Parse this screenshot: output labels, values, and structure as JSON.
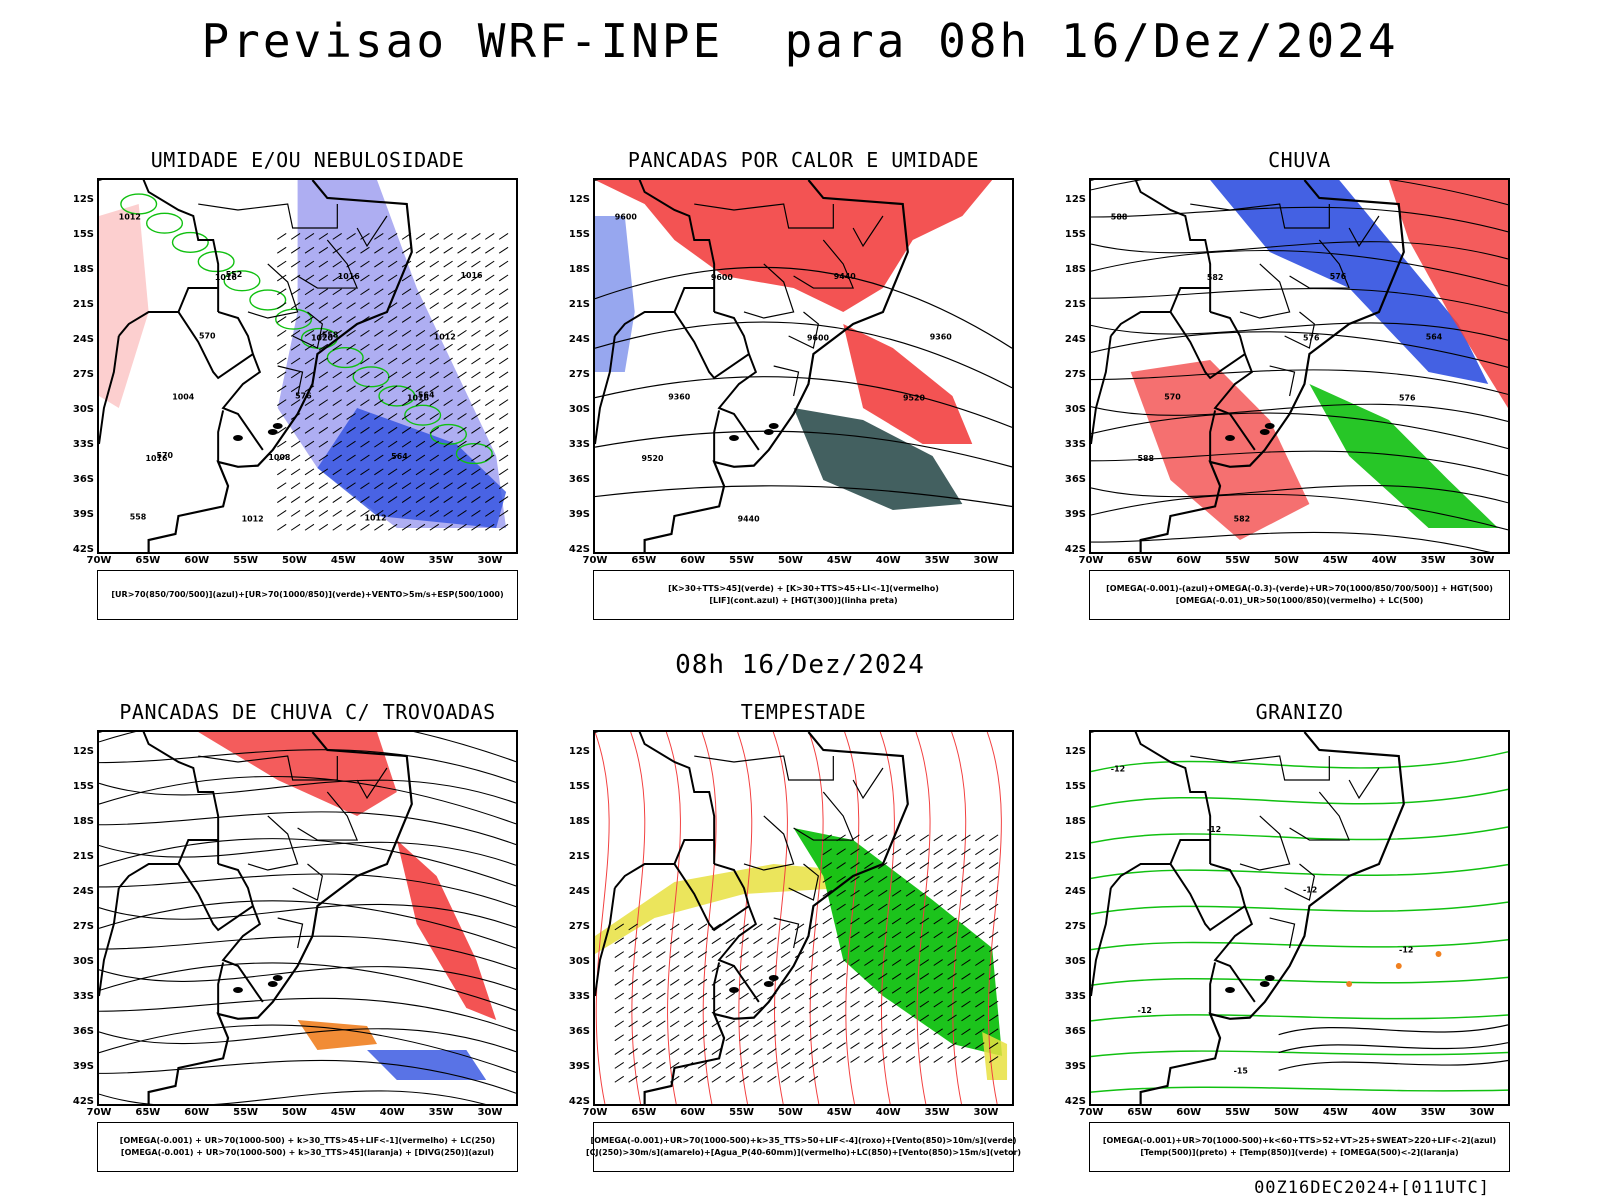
{
  "title": "Previsao WRF-INPE  para 08h 16/Dez/2024",
  "middle_date": "08h 16/Dez/2024",
  "footer": "00Z16DEC2024+[011UTC]",
  "lat_labels": [
    "12S",
    "15S",
    "18S",
    "21S",
    "24S",
    "27S",
    "30S",
    "33S",
    "36S",
    "39S",
    "42S"
  ],
  "lon_labels": [
    "70W",
    "65W",
    "60W",
    "55W",
    "50W",
    "45W",
    "40W",
    "35W",
    "30W"
  ],
  "colors": {
    "red": "#f24040",
    "blue": "#3050e0",
    "green": "#10c010",
    "orange": "#f08020",
    "yellow": "#e8e040",
    "darkteal": "#2f4f4f",
    "lavender": "#a0a0f0",
    "purple": "#a020c0"
  },
  "panels": [
    {
      "title": "UMIDADE E/OU NEBULOSIDADE",
      "legend": [
        "[UR>70(850/700/500)](azul)+[UR>70(1000/850)](verde)+VENTO>5m/s+ESP(500/1000)"
      ],
      "contour_labels": [
        "1012",
        "1016",
        "1020",
        "1016",
        "1016",
        "1012",
        "1016",
        "1012",
        "1004",
        "1008",
        "1012",
        "1016",
        "570",
        "576",
        "564",
        "558",
        "552",
        "558",
        "564",
        "570"
      ]
    },
    {
      "title": "PANCADAS POR CALOR E UMIDADE",
      "legend": [
        "[K>30+TTS>45](verde) + [K>30+TTS>45+LI<-1](vermelho)",
        "[LIF](cont.azul) + [HGT(300)](linha preta)"
      ],
      "contour_labels": [
        "9600",
        "9600",
        "9600",
        "9520",
        "9520",
        "9440",
        "9440",
        "9360",
        "9360"
      ]
    },
    {
      "title": "CHUVA",
      "legend": [
        "[OMEGA(-0.001)-(azul)+OMEGA(-0.3)-(verde)+UR>70(1000/850/700/500)] + HGT(500)",
        "[OMEGA(-0.01)_UR>50(1000/850)(vermelho) + LC(500)"
      ],
      "contour_labels": [
        "588",
        "582",
        "576",
        "576",
        "588",
        "582",
        "576",
        "564",
        "570"
      ]
    },
    {
      "title": "PANCADAS DE CHUVA C/ TROVOADAS",
      "legend": [
        "[OMEGA(-0.001) + UR>70(1000-500) + k>30_TTS>45+LIF<-1](vermelho) + LC(250)",
        "[OMEGA(-0.001) + UR>70(1000-500) + k>30_TTS>45](laranja) + [DIVG(250)](azul)"
      ],
      "contour_labels": []
    },
    {
      "title": "TEMPESTADE",
      "legend": [
        "[OMEGA(-0.001)+UR>70(1000-500)+k>35_TTS>50+LIF<-4](roxo)+[Vento(850)>10m/s](verde)",
        "[CJ(250)>30m/s](amarelo)+[Agua_P(40-60mm)](vermelho)+LC(850)+[Vento(850)>15m/s](vetor)"
      ],
      "contour_labels": []
    },
    {
      "title": "GRANIZO",
      "legend": [
        "[OMEGA(-0.001)+UR>70(1000-500)+k<60+TTS>52+VT>25+SWEAT>220+LIF<-2](azul)",
        "[Temp(500)](preto) + [Temp(850)](verde) + [OMEGA(500)<-2](laranja)"
      ],
      "contour_labels": [
        "-12",
        "-12",
        "-12",
        "-12",
        "-12",
        "-15"
      ]
    }
  ]
}
